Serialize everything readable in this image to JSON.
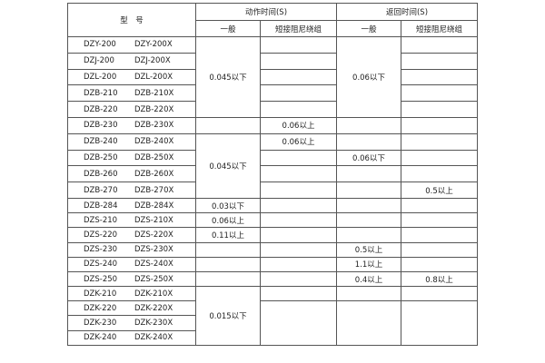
{
  "header": {
    "model": "型　号",
    "action_time": "动作时间(S)",
    "return_time": "返回时间(S)",
    "general": "一般",
    "short_damping": "短接阻尼绕组"
  },
  "rows": [
    {
      "model": [
        "DZY-200",
        "DZY-200X"
      ],
      "cells": [
        {
          "text": "0.045以下",
          "rowspan": 5
        },
        {
          "text": ""
        },
        {
          "text": "0.06以下",
          "rowspan": 5
        },
        {
          "text": ""
        }
      ]
    },
    {
      "model": [
        "DZJ-200",
        "DZJ-200X"
      ],
      "cells": [
        {
          "text": ""
        },
        {
          "text": ""
        }
      ]
    },
    {
      "model": [
        "DZL-200",
        "DZL-200X"
      ],
      "cells": [
        {
          "text": ""
        },
        {
          "text": ""
        }
      ]
    },
    {
      "model": [
        "DZB-210",
        "DZB-210X"
      ],
      "cells": [
        {
          "text": ""
        },
        {
          "text": ""
        }
      ]
    },
    {
      "model": [
        "DZB-220",
        "DZB-220X"
      ],
      "cells": [
        {
          "text": ""
        },
        {
          "text": ""
        }
      ]
    },
    {
      "model": [
        "DZB-230",
        "DZB-230X"
      ],
      "cells": [
        {
          "text": ""
        },
        {
          "text": "0.06以上"
        },
        {
          "text": ""
        },
        {
          "text": ""
        }
      ]
    },
    {
      "model": [
        "DZB-240",
        "DZB-240X"
      ],
      "cells": [
        {
          "text": "0.045以下",
          "rowspan": 4
        },
        {
          "text": "0.06以上"
        },
        {
          "text": ""
        },
        {
          "text": ""
        }
      ]
    },
    {
      "model": [
        "DZB-250",
        "DZB-250X"
      ],
      "cells": [
        {
          "text": ""
        },
        {
          "text": "0.06以下"
        },
        {
          "text": ""
        }
      ]
    },
    {
      "model": [
        "DZB-260",
        "DZB-260X"
      ],
      "cells": [
        {
          "text": ""
        },
        {
          "text": ""
        },
        {
          "text": ""
        }
      ]
    },
    {
      "model": [
        "DZB-270",
        "DZB-270X"
      ],
      "cells": [
        {
          "text": ""
        },
        {
          "text": ""
        },
        {
          "text": "0.5以上"
        }
      ]
    },
    {
      "model": [
        "DZB-284",
        "DZB-284X"
      ],
      "cells": [
        {
          "text": "0.03以下"
        },
        {
          "text": ""
        },
        {
          "text": ""
        },
        {
          "text": ""
        }
      ]
    },
    {
      "model": [
        "DZS-210",
        "DZS-210X"
      ],
      "cells": [
        {
          "text": "0.06以上"
        },
        {
          "text": ""
        },
        {
          "text": ""
        },
        {
          "text": ""
        }
      ]
    },
    {
      "model": [
        "DZS-220",
        "DZS-220X"
      ],
      "cells": [
        {
          "text": "0.11以上"
        },
        {
          "text": ""
        },
        {
          "text": ""
        },
        {
          "text": ""
        }
      ]
    },
    {
      "model": [
        "DZS-230",
        "DZS-230X"
      ],
      "cells": [
        {
          "text": ""
        },
        {
          "text": ""
        },
        {
          "text": "0.5以上"
        },
        {
          "text": ""
        }
      ]
    },
    {
      "model": [
        "DZS-240",
        "DZS-240X"
      ],
      "cells": [
        {
          "text": ""
        },
        {
          "text": ""
        },
        {
          "text": "1.1以上"
        },
        {
          "text": ""
        }
      ]
    },
    {
      "model": [
        "DZS-250",
        "DZS-250X"
      ],
      "cells": [
        {
          "text": ""
        },
        {
          "text": ""
        },
        {
          "text": "0.4以上"
        },
        {
          "text": "0.8以上"
        }
      ]
    },
    {
      "model": [
        "DZK-210",
        "DZK-210X"
      ],
      "cells": [
        {
          "text": "0.015以下",
          "rowspan": 5
        },
        {
          "text": ""
        },
        {
          "text": ""
        },
        {
          "text": ""
        }
      ]
    },
    {
      "model": [
        "DZK-220",
        "DZK-220X"
      ],
      "cells": [
        {
          "text": "",
          "rowspan": 4
        },
        {
          "text": "",
          "rowspan": 4
        },
        {
          "text": "",
          "rowspan": 4
        }
      ]
    },
    {
      "model": [
        "DZK-230",
        "DZK-230X"
      ],
      "cells": []
    },
    {
      "model": [
        "DZK-240",
        "DZK-240X"
      ],
      "cells": []
    }
  ]
}
